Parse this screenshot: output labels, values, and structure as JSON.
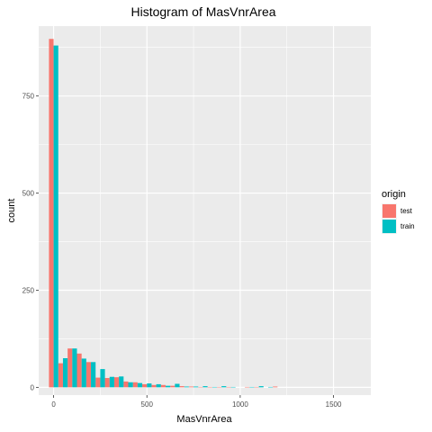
{
  "chart_data": {
    "type": "bar",
    "title": "Histogram of MasVnrArea",
    "xlabel": "MasVnrArea",
    "ylabel": "count",
    "xlim": [
      -80,
      1700
    ],
    "ylim": [
      -20,
      930
    ],
    "x_ticks": [
      "0",
      "500",
      "1000",
      "1500"
    ],
    "x_tick_values": [
      0,
      500,
      1000,
      1500
    ],
    "y_ticks": [
      "0",
      "250",
      "500",
      "750"
    ],
    "y_tick_values": [
      0,
      250,
      500,
      750
    ],
    "bin_width": 50,
    "grid": true,
    "legend": {
      "title": "origin",
      "position": "right"
    },
    "series": [
      {
        "name": "test",
        "color": "#F8766D",
        "bins": [
          0,
          50,
          100,
          150,
          200,
          250,
          300,
          350,
          400,
          450,
          500,
          550,
          600,
          650,
          700,
          750,
          800,
          850,
          900,
          950,
          1000,
          1050,
          1100,
          1150,
          1200
        ],
        "values": [
          897,
          62,
          100,
          87,
          65,
          25,
          24,
          26,
          15,
          13,
          8,
          6,
          6,
          4,
          3,
          2,
          1,
          1,
          1,
          1,
          0,
          1,
          1,
          0,
          2
        ]
      },
      {
        "name": "train",
        "color": "#00BFC4",
        "bins": [
          0,
          50,
          100,
          150,
          200,
          250,
          300,
          350,
          400,
          450,
          500,
          550,
          600,
          650,
          700,
          750,
          800,
          850,
          900,
          950,
          1000,
          1050,
          1100,
          1150,
          1200
        ],
        "values": [
          880,
          75,
          100,
          74,
          65,
          47,
          27,
          28,
          13,
          11,
          10,
          8,
          4,
          9,
          2,
          2,
          3,
          1,
          3,
          1,
          0,
          1,
          3,
          1,
          0
        ]
      }
    ]
  }
}
